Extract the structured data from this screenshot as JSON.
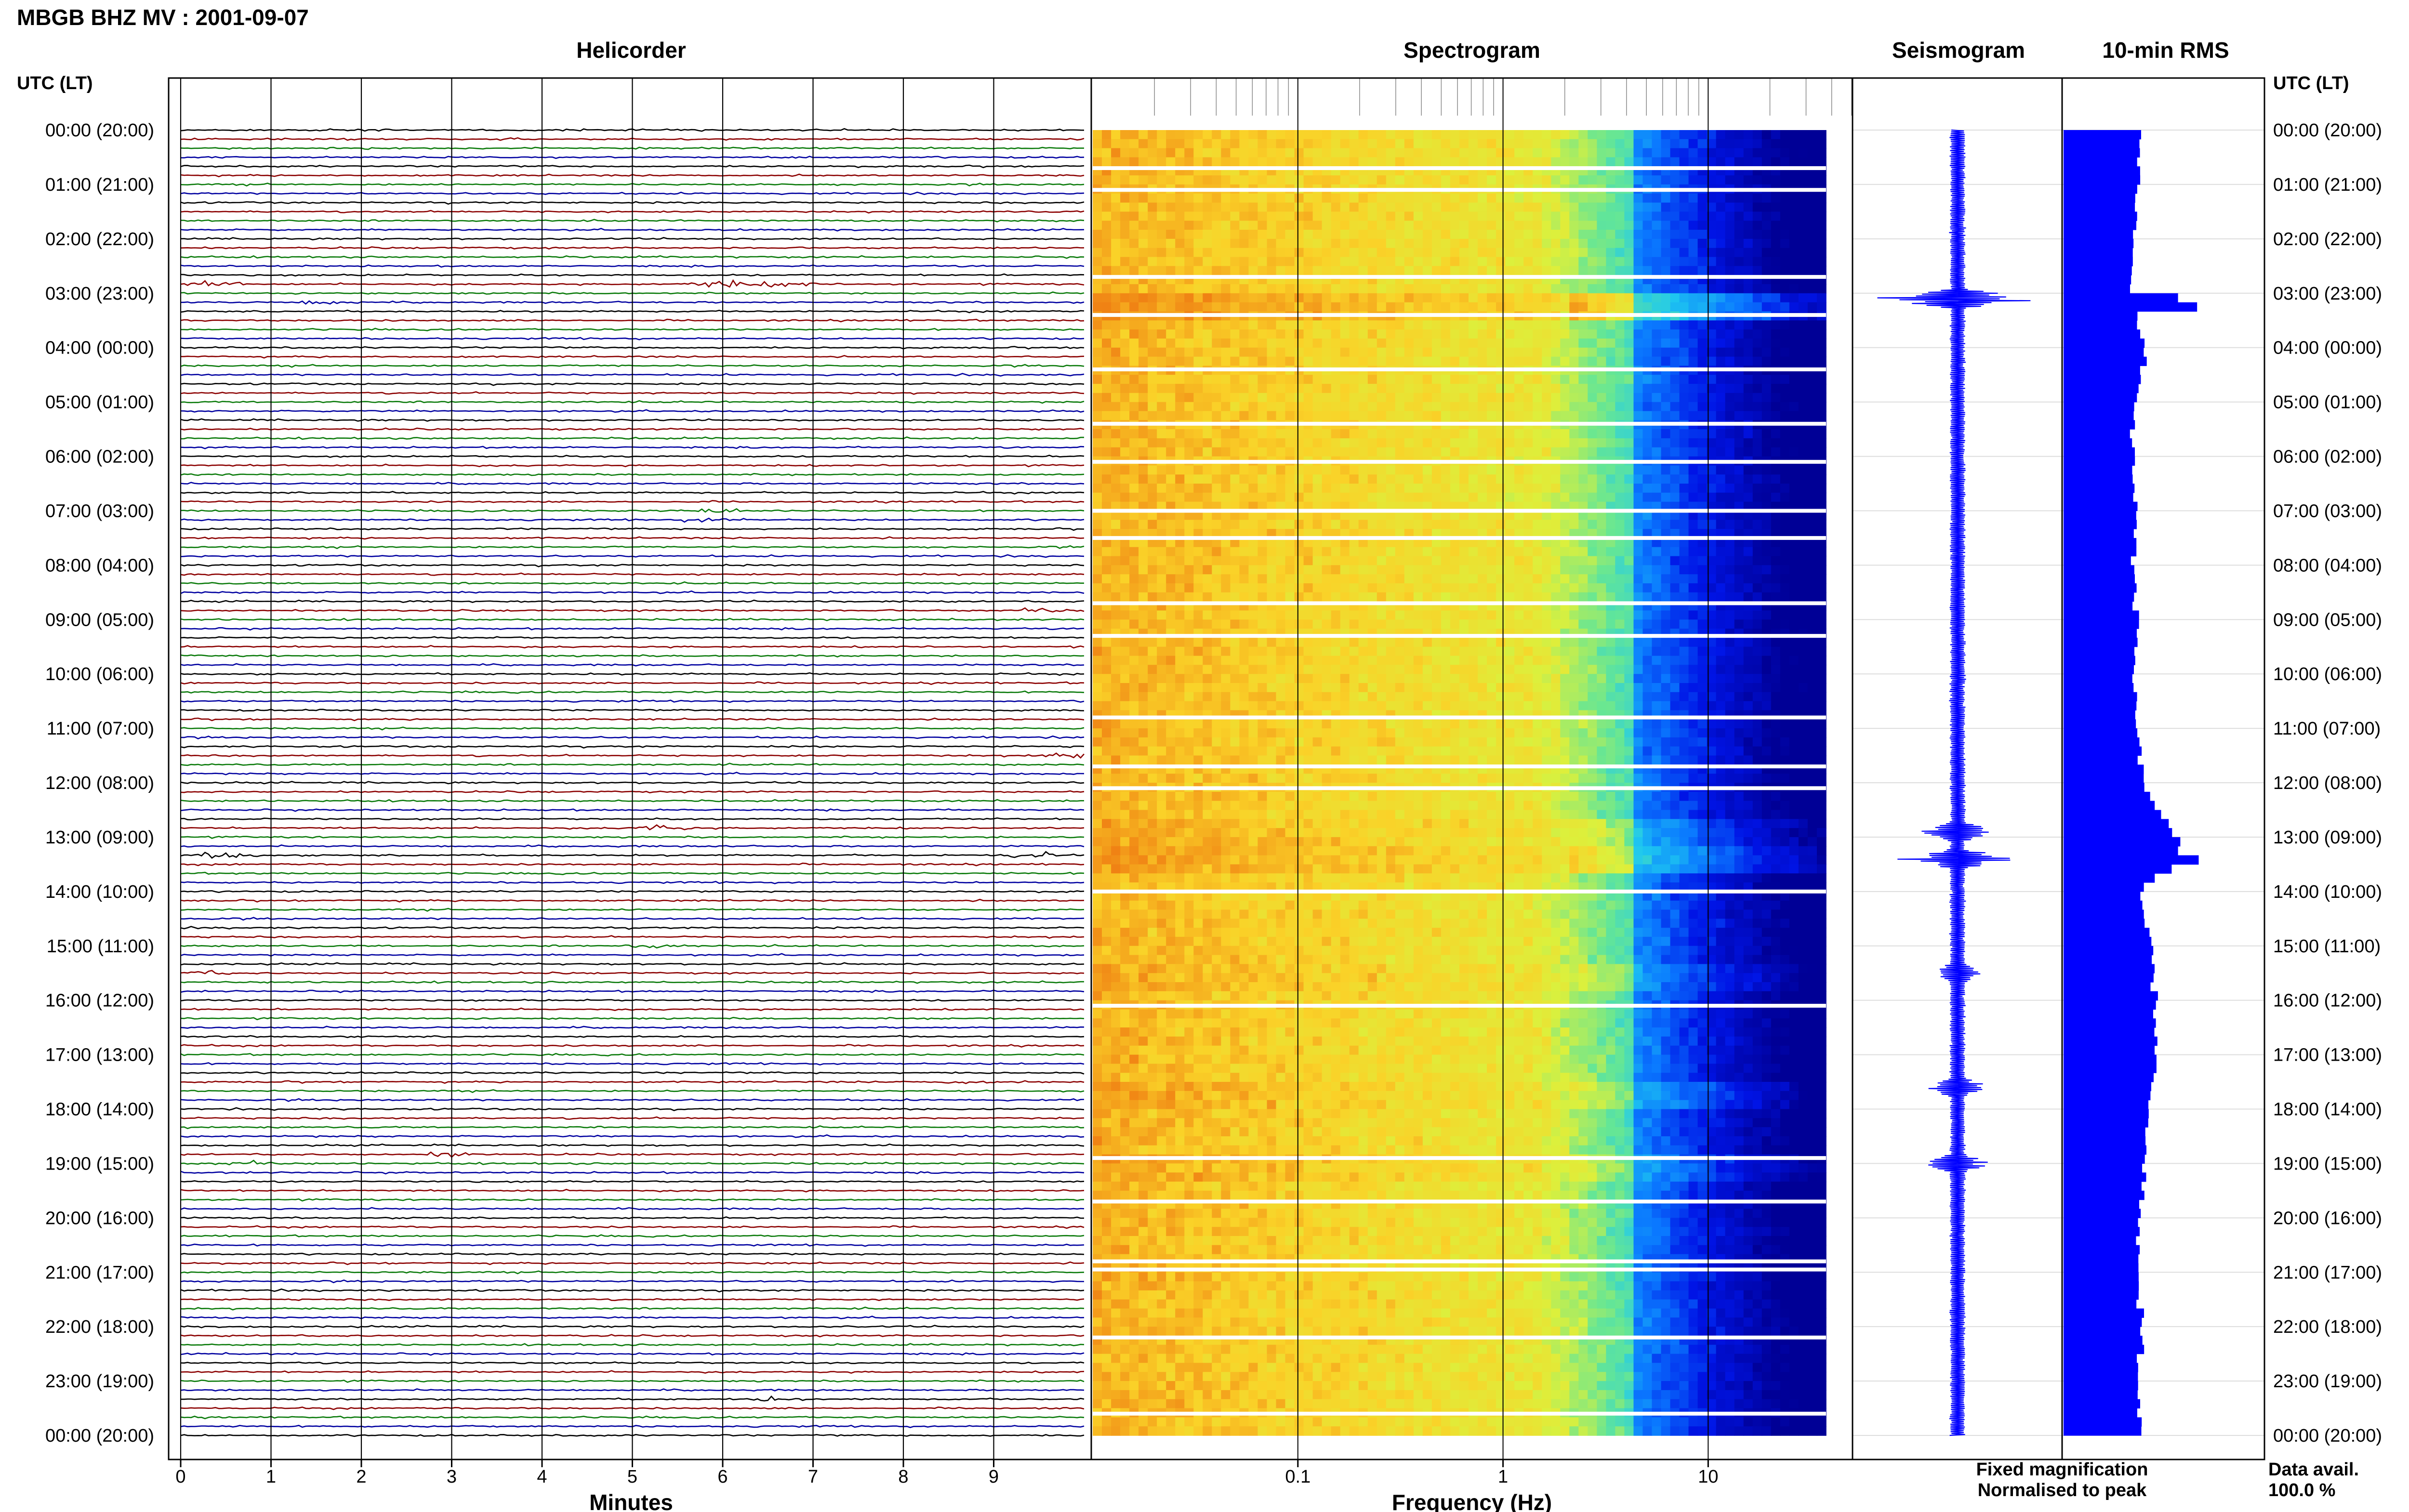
{
  "header": {
    "title": "MBGB BHZ MV : 2001-09-07"
  },
  "panels": {
    "helicorder": "Helicorder",
    "spectrogram": "Spectrogram",
    "seismogram": "Seismogram",
    "rms": "10-min RMS"
  },
  "axes": {
    "utc_label_left": "UTC (LT)",
    "utc_label_right": "UTC (LT)",
    "helicorder_xlabel": "Minutes",
    "spectrogram_xlabel": "Frequency (Hz)"
  },
  "legend": {
    "fixed": "Fixed magnification",
    "normalised": "Normalised to peak",
    "fixed_color": "#1010ff",
    "normalised_color": "#ff1010"
  },
  "availability": {
    "label": "Data avail.",
    "value": "100.0 %"
  },
  "colors": {
    "trace_cycle": [
      "#000000",
      "#8b0000",
      "#0a7a0a",
      "#0000a0"
    ],
    "rms_bar": "#0000ff",
    "seismogram": "#0000ff",
    "spectrogram_gap": "#ffffff"
  },
  "chart_data": [
    {
      "type": "line",
      "name": "Helicorder",
      "xlabel": "Minutes",
      "x_ticks": [
        "0",
        "1",
        "2",
        "3",
        "4",
        "5",
        "6",
        "7",
        "8",
        "9"
      ],
      "xlim": [
        0,
        10
      ],
      "rows_per_hour": 6,
      "time_labels": [
        "00:00 (20:00)",
        "01:00 (21:00)",
        "02:00 (22:00)",
        "03:00 (23:00)",
        "04:00 (00:00)",
        "05:00 (01:00)",
        "06:00 (02:00)",
        "07:00 (03:00)",
        "08:00 (04:00)",
        "09:00 (05:00)",
        "10:00 (06:00)",
        "11:00 (07:00)",
        "12:00 (08:00)",
        "13:00 (09:00)",
        "14:00 (10:00)",
        "15:00 (11:00)",
        "16:00 (12:00)",
        "17:00 (13:00)",
        "18:00 (14:00)",
        "19:00 (15:00)",
        "20:00 (16:00)",
        "21:00 (17:00)",
        "22:00 (18:00)",
        "23:00 (19:00)",
        "00:00 (20:00)"
      ],
      "events": [
        {
          "hour": 2.8,
          "minute": 0.4,
          "size": 1.0
        },
        {
          "hour": 2.8,
          "minute": 6.0,
          "size": 1.6
        },
        {
          "hour": 2.8,
          "minute": 6.7,
          "size": 1.0
        },
        {
          "hour": 3.2,
          "minute": 1.6,
          "size": 0.9
        },
        {
          "hour": 7.1,
          "minute": 5.9,
          "size": 0.9
        },
        {
          "hour": 8.8,
          "minute": 9.5,
          "size": 0.8
        },
        {
          "hour": 11.5,
          "minute": 9.8,
          "size": 1.0
        },
        {
          "hour": 12.8,
          "minute": 5.3,
          "size": 1.2
        },
        {
          "hour": 13.3,
          "minute": 0.5,
          "size": 1.3
        },
        {
          "hour": 13.3,
          "minute": 9.4,
          "size": 1.4
        },
        {
          "hour": 15.0,
          "minute": 5.2,
          "size": 0.8
        },
        {
          "hour": 15.5,
          "minute": 0.2,
          "size": 0.8
        },
        {
          "hour": 17.5,
          "minute": 8.7,
          "size": 0.8
        },
        {
          "hour": 18.9,
          "minute": 3.0,
          "size": 0.9
        },
        {
          "hour": 19.0,
          "minute": 0.7,
          "size": 0.9
        },
        {
          "hour": 23.3,
          "minute": 6.5,
          "size": 0.7
        }
      ]
    },
    {
      "type": "heatmap",
      "name": "Spectrogram",
      "xlabel": "Frequency (Hz)",
      "x_scale": "log",
      "xlim": [
        0.01,
        50
      ],
      "x_ticks": [
        "0.1",
        "1",
        "10"
      ],
      "gap_hours": [
        0.7,
        1.1,
        2.7,
        3.4,
        4.4,
        5.4,
        6.1,
        7.0,
        7.5,
        8.7,
        9.3,
        10.8,
        11.7,
        12.1,
        14.0,
        16.1,
        18.9,
        19.7,
        20.8,
        20.95,
        22.2,
        23.6
      ]
    },
    {
      "type": "line",
      "name": "Seismogram",
      "bursts": [
        {
          "hour": 3.1,
          "amp": 0.85
        },
        {
          "hour": 12.9,
          "amp": 0.35
        },
        {
          "hour": 13.4,
          "amp": 0.6
        },
        {
          "hour": 15.5,
          "amp": 0.25
        },
        {
          "hour": 17.6,
          "amp": 0.3
        },
        {
          "hour": 19.0,
          "amp": 0.3
        }
      ]
    },
    {
      "type": "bar",
      "name": "10-min RMS",
      "orientation": "horizontal",
      "hourly_levels": [
        0.48,
        0.46,
        0.44,
        0.43,
        0.52,
        0.45,
        0.44,
        0.45,
        0.44,
        0.46,
        0.44,
        0.46,
        0.52,
        0.72,
        0.48,
        0.55,
        0.58,
        0.58,
        0.53,
        0.52,
        0.48,
        0.47,
        0.49,
        0.47,
        0.48
      ],
      "spikes": [
        {
          "hour": 3.0,
          "value": 0.72
        },
        {
          "hour": 3.15,
          "value": 0.84
        },
        {
          "hour": 13.1,
          "value": 0.72
        },
        {
          "hour": 13.3,
          "value": 0.85
        },
        {
          "hour": 13.45,
          "value": 0.68
        }
      ]
    }
  ]
}
